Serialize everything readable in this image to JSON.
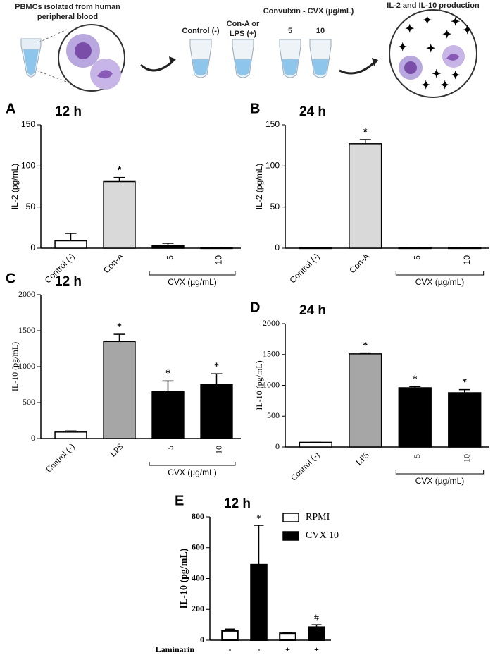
{
  "schematic": {
    "pbmc_label": [
      "PBMCs isolated from human",
      "peripheral blood"
    ],
    "control_label": "Control (-)",
    "stimulus_label": [
      "Con-A or",
      "LPS (+)"
    ],
    "cvx_label": "Convulxin - CVX (µg/mL)",
    "cvx_doses": [
      "5",
      "10"
    ],
    "result_label": "IL-2 and IL-10 production"
  },
  "chart_data": [
    {
      "type": "bar",
      "panel_label": "A",
      "title": "12 h",
      "y_label": "IL-2 (pg/mL)",
      "categories": [
        "Control (-)",
        "Con-A",
        "5",
        "10"
      ],
      "values": [
        9,
        81,
        3,
        0.5
      ],
      "errors": [
        9,
        5,
        3,
        0
      ],
      "colors": [
        "#ffffff",
        "#d9d9d9",
        "#000000",
        "#000000"
      ],
      "annotations": [
        null,
        "*",
        null,
        null
      ],
      "group_label": "CVX (µg/mL)",
      "ylim": [
        0,
        150
      ],
      "yticks": [
        0,
        50,
        100,
        150
      ]
    },
    {
      "type": "bar",
      "panel_label": "B",
      "title": "24 h",
      "y_label": "IL-2 (pg/mL)",
      "categories": [
        "Control (-)",
        "Con-A",
        "5",
        "10"
      ],
      "values": [
        0.5,
        127,
        0.5,
        0.5
      ],
      "errors": [
        0,
        5,
        0,
        0
      ],
      "colors": [
        "#ffffff",
        "#d9d9d9",
        "#000000",
        "#000000"
      ],
      "annotations": [
        null,
        "*",
        null,
        null
      ],
      "group_label": "CVX (µg/mL)",
      "ylim": [
        0,
        150
      ],
      "yticks": [
        0,
        50,
        100,
        150
      ]
    },
    {
      "type": "bar",
      "panel_label": "C",
      "title": "12 h",
      "y_label": "IL-10 (pg/mL)",
      "categories": [
        "Control (-)",
        "LPS",
        "5",
        "10"
      ],
      "values": [
        90,
        1350,
        650,
        750
      ],
      "errors": [
        15,
        100,
        150,
        150
      ],
      "colors": [
        "#ffffff",
        "#a6a6a6",
        "#000000",
        "#000000"
      ],
      "annotations": [
        null,
        "*",
        "*",
        "*"
      ],
      "group_label": "CVX (µg/mL)",
      "ylim": [
        0,
        2000
      ],
      "yticks": [
        0,
        500,
        1000,
        1500,
        2000
      ]
    },
    {
      "type": "bar",
      "panel_label": "D",
      "title": "24 h",
      "y_label": "IL-10 (pg/mL)",
      "categories": [
        "Control (-)",
        "LPS",
        "5",
        "10"
      ],
      "values": [
        75,
        1510,
        960,
        880
      ],
      "errors": [
        0,
        15,
        20,
        50
      ],
      "colors": [
        "#ffffff",
        "#a6a6a6",
        "#000000",
        "#000000"
      ],
      "annotations": [
        null,
        "*",
        "*",
        "*"
      ],
      "group_label": "CVX (µg/mL)",
      "ylim": [
        0,
        2000
      ],
      "yticks": [
        0,
        500,
        1000,
        1500,
        2000
      ]
    },
    {
      "type": "grouped_bar",
      "panel_label": "E",
      "title": "12 h",
      "y_label": "IL-10 (pg/mL)",
      "row_label": "Laminarin",
      "categories": [
        "-",
        "-",
        "+",
        "+"
      ],
      "series": [
        {
          "name": "RPMI",
          "color": "#ffffff",
          "values": [
            60,
            null,
            45,
            null
          ],
          "errors": [
            12,
            null,
            5,
            null
          ]
        },
        {
          "name": "CVX 10",
          "color": "#000000",
          "values": [
            null,
            490,
            null,
            85
          ],
          "errors": [
            null,
            255,
            null,
            15
          ]
        }
      ],
      "annotations": [
        null,
        "*",
        null,
        "#"
      ],
      "ylim": [
        0,
        800
      ],
      "yticks": [
        0,
        200,
        400,
        600,
        800
      ]
    }
  ]
}
